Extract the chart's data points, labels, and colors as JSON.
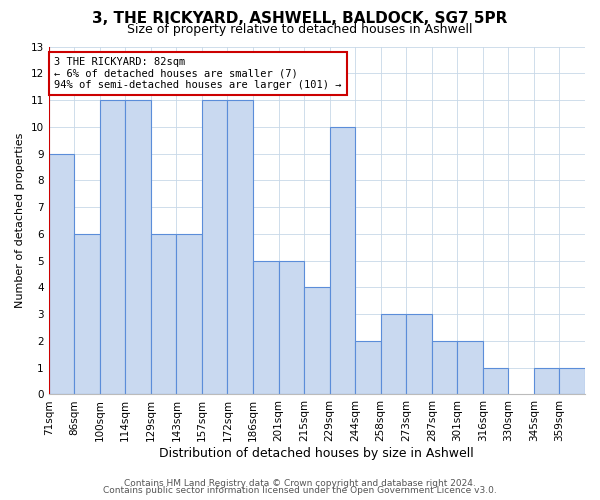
{
  "title": "3, THE RICKYARD, ASHWELL, BALDOCK, SG7 5PR",
  "subtitle": "Size of property relative to detached houses in Ashwell",
  "xlabel": "Distribution of detached houses by size in Ashwell",
  "ylabel": "Number of detached properties",
  "footer_line1": "Contains HM Land Registry data © Crown copyright and database right 2024.",
  "footer_line2": "Contains public sector information licensed under the Open Government Licence v3.0.",
  "bin_labels": [
    "71sqm",
    "86sqm",
    "100sqm",
    "114sqm",
    "129sqm",
    "143sqm",
    "157sqm",
    "172sqm",
    "186sqm",
    "201sqm",
    "215sqm",
    "229sqm",
    "244sqm",
    "258sqm",
    "273sqm",
    "287sqm",
    "301sqm",
    "316sqm",
    "330sqm",
    "345sqm",
    "359sqm"
  ],
  "bar_heights": [
    9,
    6,
    11,
    11,
    6,
    6,
    11,
    11,
    5,
    5,
    4,
    10,
    2,
    3,
    3,
    2,
    2,
    1,
    0,
    1,
    1
  ],
  "bar_color": "#c9d9f0",
  "bar_edge_color": "#5b8dd9",
  "highlight_color": "#cc0000",
  "annotation_text": "3 THE RICKYARD: 82sqm\n← 6% of detached houses are smaller (7)\n94% of semi-detached houses are larger (101) →",
  "annotation_box_color": "#ffffff",
  "annotation_box_edge_color": "#cc0000",
  "ylim": [
    0,
    13
  ],
  "yticks": [
    0,
    1,
    2,
    3,
    4,
    5,
    6,
    7,
    8,
    9,
    10,
    11,
    12,
    13
  ],
  "background_color": "#ffffff",
  "grid_color": "#c8d8e8",
  "title_fontsize": 11,
  "subtitle_fontsize": 9,
  "xlabel_fontsize": 9,
  "ylabel_fontsize": 8,
  "tick_fontsize": 7.5,
  "annotation_fontsize": 7.5,
  "footer_fontsize": 6.5
}
